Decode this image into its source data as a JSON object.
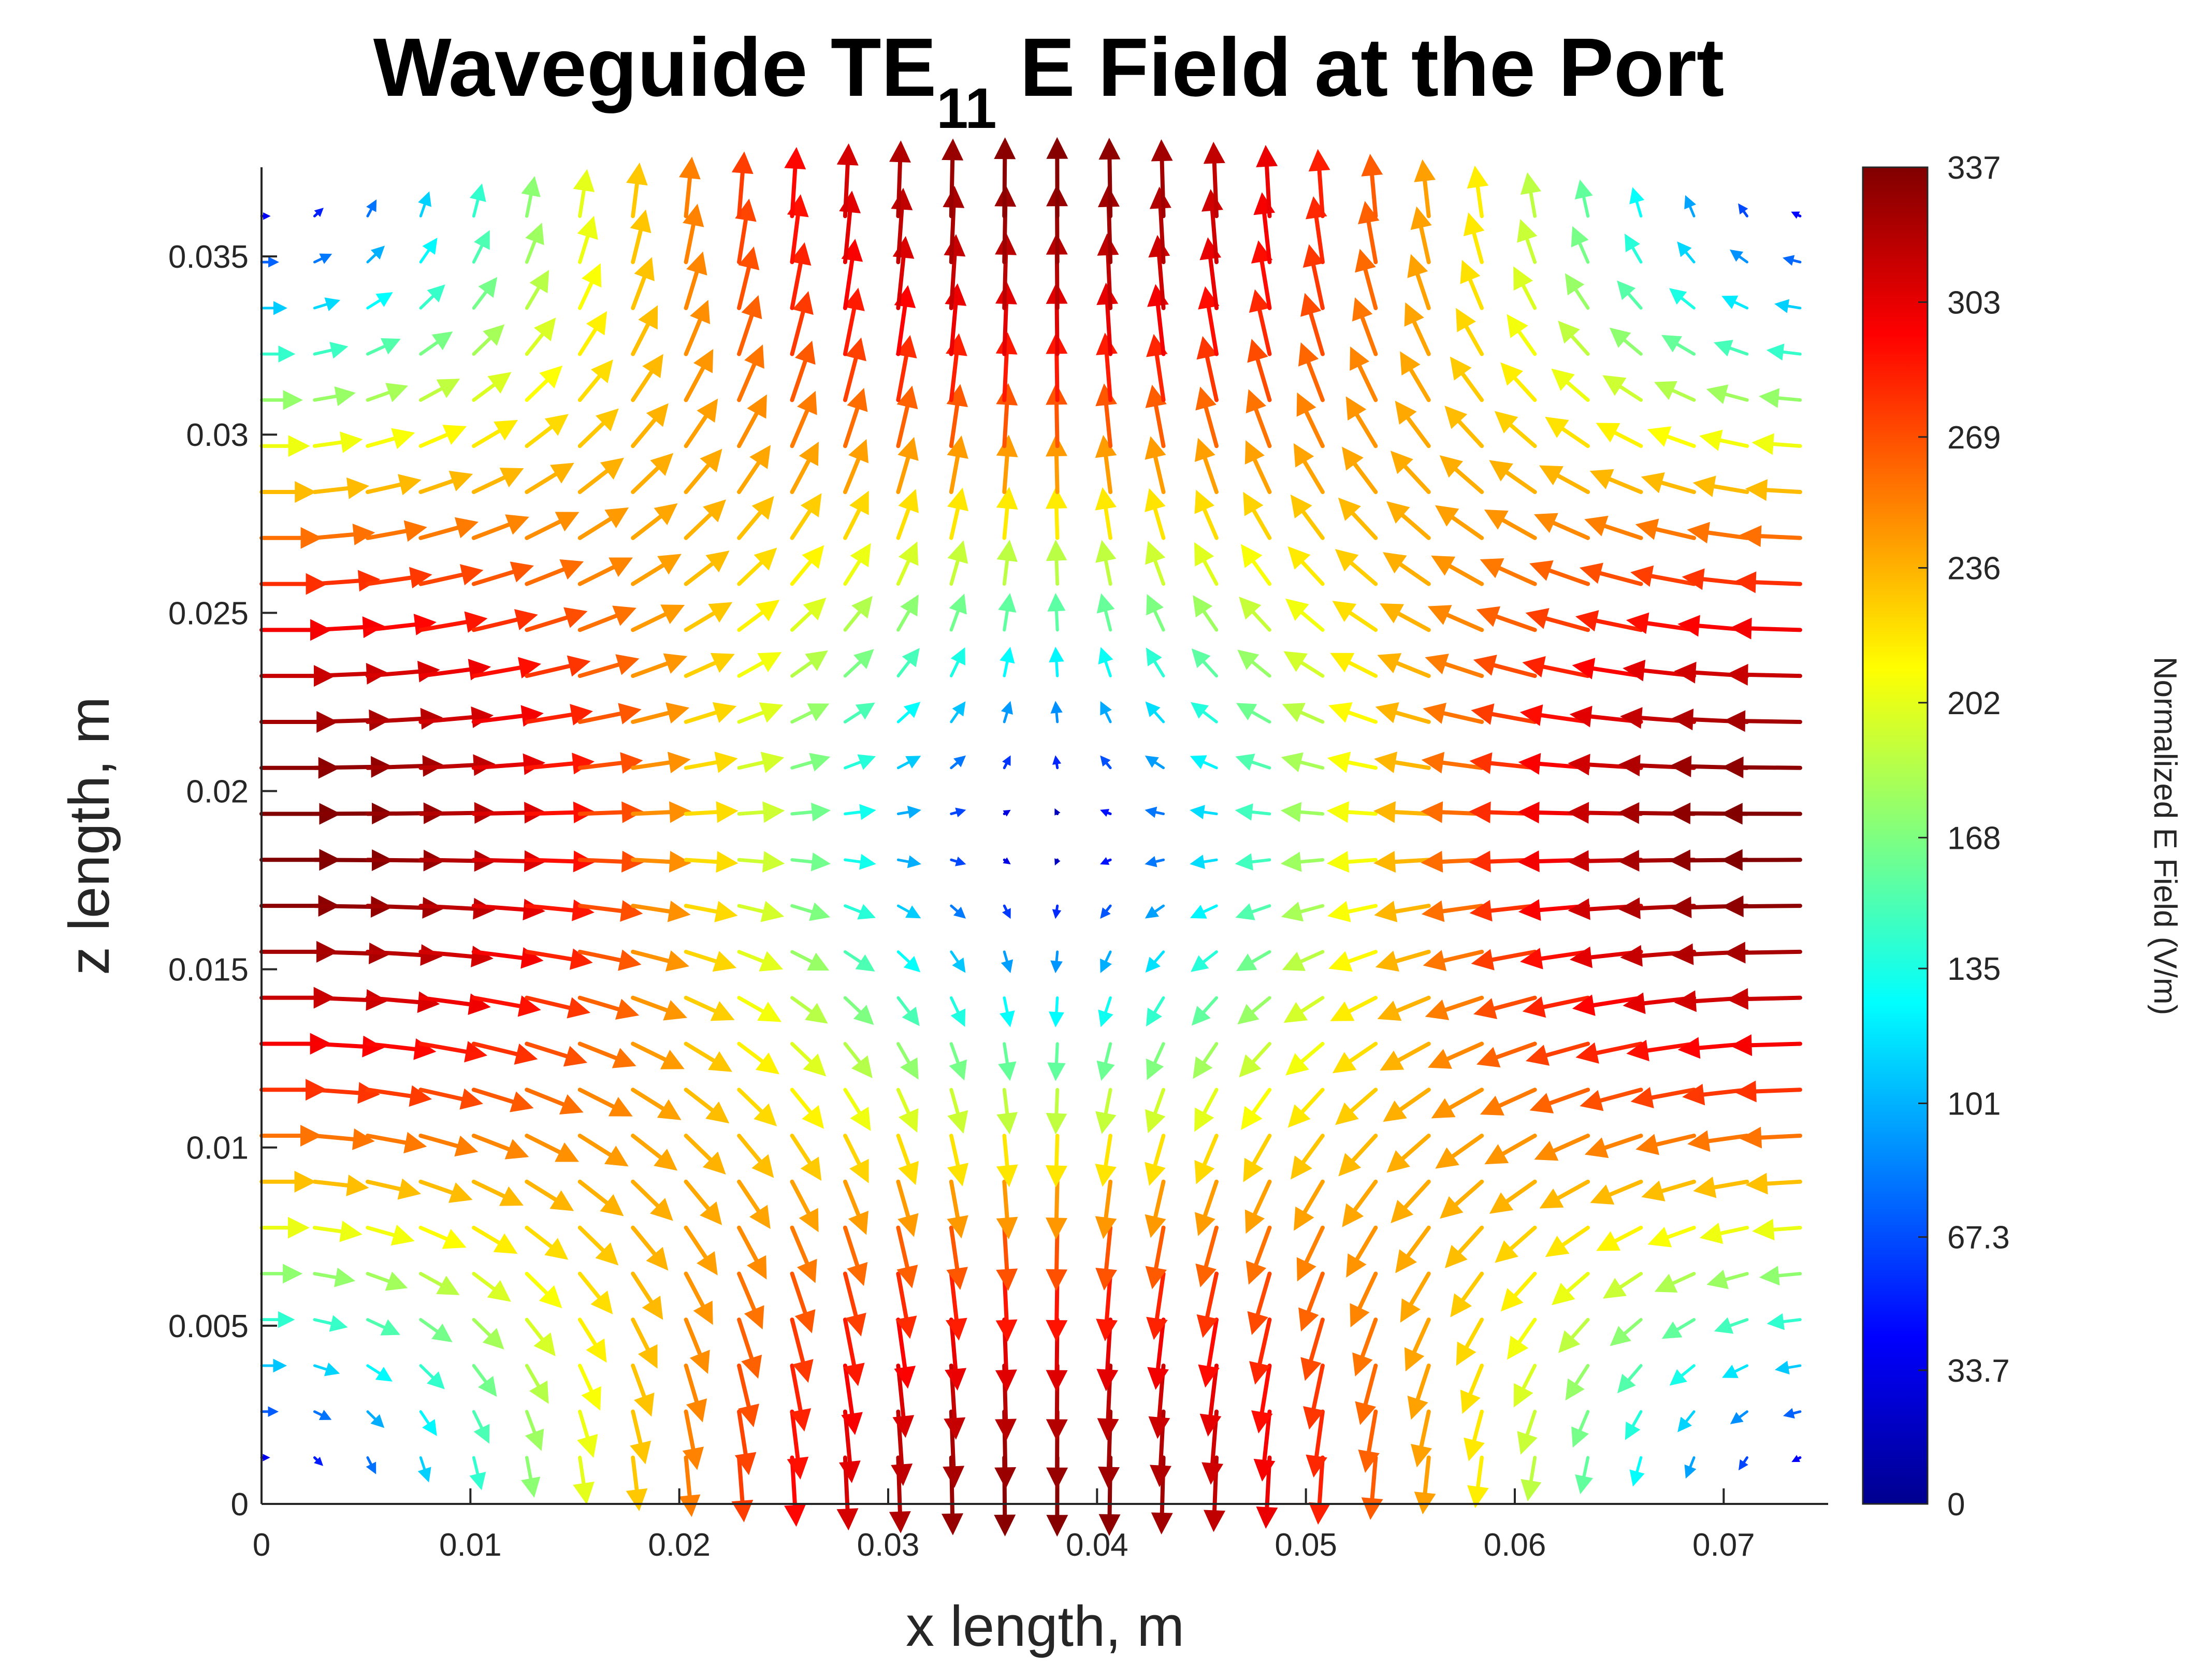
{
  "chart_data": {
    "type": "quiver",
    "title": {
      "text": "Waveguide TE",
      "subscript": "11",
      "suffix": " E Field at the Port"
    },
    "xlabel": "x length, m",
    "ylabel": "z length, m",
    "xlim": [
      0,
      0.075
    ],
    "ylim": [
      0,
      0.0375
    ],
    "xticks": [
      0,
      0.01,
      0.02,
      0.03,
      0.04,
      0.05,
      0.06,
      0.07
    ],
    "xtick_labels": [
      "0",
      "0.01",
      "0.02",
      "0.03",
      "0.04",
      "0.05",
      "0.06",
      "0.07"
    ],
    "yticks": [
      0,
      0.005,
      0.01,
      0.015,
      0.02,
      0.025,
      0.03,
      0.035
    ],
    "ytick_labels": [
      "0",
      "0.005",
      "0.01",
      "0.015",
      "0.02",
      "0.025",
      "0.03",
      "0.035"
    ],
    "grid": false,
    "field": {
      "x_start": 0,
      "x_step": 0.00254,
      "nx": 30,
      "y_start": 0.0013,
      "y_step": 0.00129,
      "ny": 28,
      "center_x": 0.0375,
      "center_z": 0.01875,
      "max_magnitude": 337
    },
    "colorbar": {
      "label": "Normalized E Field (V/m)",
      "colormap": "jet",
      "range": [
        0,
        337
      ],
      "ticks": [
        0,
        33.7,
        67.3,
        101,
        135,
        168,
        202,
        236,
        269,
        303,
        337
      ],
      "tick_labels": [
        "0",
        "33.7",
        "67.3",
        "101",
        "135",
        "168",
        "202",
        "236",
        "269",
        "303",
        "337"
      ]
    }
  }
}
